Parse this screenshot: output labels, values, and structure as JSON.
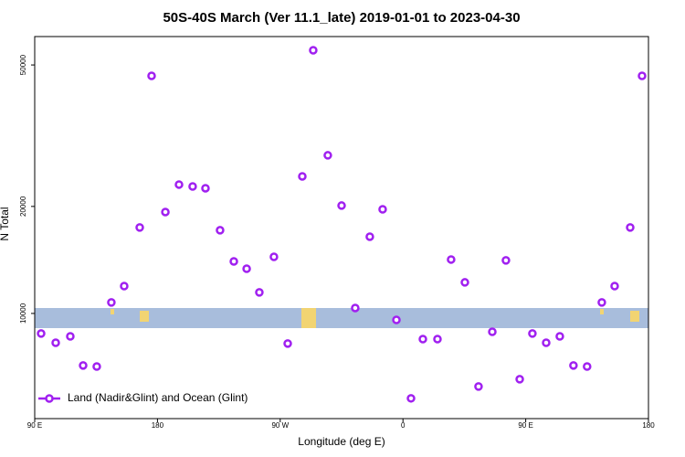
{
  "chart_data": {
    "type": "scatter",
    "title": "50S-40S March (Ver 11.1_late)   2019-01-01 to 2023-04-30",
    "x_label": "Longitude (deg E)",
    "y_label": "N Total",
    "log_scale_y": true,
    "legend": "lower left",
    "xlim": [
      90,
      540
    ],
    "ylim": [
      5060,
      60100
    ],
    "xticks": [
      {
        "value": 90,
        "label": "90 E"
      },
      {
        "value": 180,
        "label": "180"
      },
      {
        "value": 270,
        "label": "90 W"
      },
      {
        "value": 360,
        "label": "0"
      },
      {
        "value": 450,
        "label": "90 E"
      },
      {
        "value": 540,
        "label": "180"
      }
    ],
    "yticks": [
      10000,
      20000,
      50000
    ],
    "x": [
      94.7,
      105.4,
      116.1,
      125.5,
      135.5,
      146.2,
      155.6,
      167,
      175.7,
      185.8,
      195.8,
      205.8,
      215.2,
      225.9,
      236,
      245.4,
      254.7,
      265.4,
      275.5,
      286.2,
      294.2,
      304.9,
      315,
      325,
      335.7,
      345.1,
      355.2,
      365.9,
      374.6,
      385.3,
      395.3,
      405.4,
      415.4,
      425.5,
      435.5,
      445.6,
      454.9,
      465,
      475,
      485,
      495,
      505.8,
      515.2,
      526.6,
      535.3
    ],
    "series": [
      {
        "name": "Land (Nadir&Glint) and Ocean (Glint)",
        "color": "#a020f0",
        "values": [
          8780,
          8270,
          8620,
          7140,
          7090,
          10740,
          11940,
          17450,
          46600,
          19290,
          23040,
          22760,
          22500,
          17140,
          14010,
          13360,
          11460,
          14430,
          8230,
          24300,
          55000,
          27850,
          20110,
          10360,
          16440,
          19630,
          9590,
          5770,
          8470,
          8470,
          14180,
          12230,
          6230,
          8880,
          14100,
          6530,
          8780,
          8270,
          8620,
          7140,
          7090,
          10740,
          11940,
          17450,
          46600
        ]
      }
    ]
  }
}
